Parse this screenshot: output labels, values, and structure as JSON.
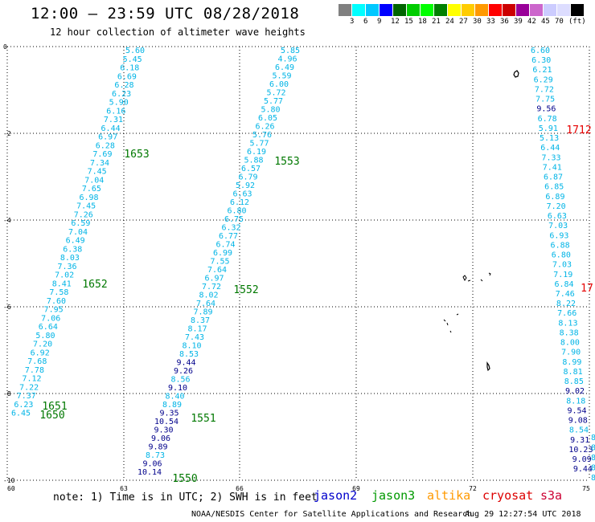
{
  "header": {
    "title": "12:00 – 23:59 UTC 08/28/2018",
    "subtitle": "12 hour collection of altimeter wave heights"
  },
  "legend": {
    "colors": [
      "#808080",
      "#00ffff",
      "#00c8ff",
      "#0000ff",
      "#006400",
      "#00cc00",
      "#00ff00",
      "#008000",
      "#ffff00",
      "#ffcc00",
      "#ff9900",
      "#ff0000",
      "#cc0000",
      "#990099",
      "#cc66cc",
      "#ccccff",
      "#ddddff",
      "#000000"
    ],
    "labels": [
      "3",
      "6",
      "9",
      "12",
      "15",
      "18",
      "21",
      "24",
      "27",
      "30",
      "33",
      "36",
      "39",
      "42",
      "45",
      "70",
      "(ft)"
    ]
  },
  "axes": {
    "x_ticks": [
      "60",
      "63",
      "66",
      "69",
      "72",
      "75"
    ],
    "y_ticks": [
      "0",
      "-2",
      "-4",
      "-6",
      "-8",
      "-10"
    ]
  },
  "colors": {
    "cyan": "#00b4e6",
    "navy": "#00008b",
    "green": "#007800",
    "red": "#e60000"
  },
  "passes": {
    "labels": [
      {
        "text": "1653",
        "color": "green"
      },
      {
        "text": "1652",
        "color": "green"
      },
      {
        "text": "1651",
        "color": "green"
      },
      {
        "text": "1650",
        "color": "green"
      },
      {
        "text": "1553",
        "color": "green"
      },
      {
        "text": "1552",
        "color": "green"
      },
      {
        "text": "1551",
        "color": "green"
      },
      {
        "text": "1550",
        "color": "green"
      },
      {
        "text": "1712",
        "color": "red"
      },
      {
        "text": "17",
        "color": "red"
      }
    ],
    "track1": [
      {
        "v": "5.60",
        "c": "cyan"
      },
      {
        "v": "5.45",
        "c": "cyan"
      },
      {
        "v": "6.18",
        "c": "cyan"
      },
      {
        "v": "6.69",
        "c": "cyan"
      },
      {
        "v": "6.28",
        "c": "cyan"
      },
      {
        "v": "6.23",
        "c": "cyan"
      },
      {
        "v": "5.90",
        "c": "cyan"
      },
      {
        "v": "6.16",
        "c": "cyan"
      },
      {
        "v": "7.31",
        "c": "cyan"
      },
      {
        "v": "6.44",
        "c": "cyan"
      },
      {
        "v": "6.97",
        "c": "cyan"
      },
      {
        "v": "6.28",
        "c": "cyan"
      },
      {
        "v": "7.69",
        "c": "cyan"
      },
      {
        "v": "7.34",
        "c": "cyan"
      },
      {
        "v": "7.45",
        "c": "cyan"
      },
      {
        "v": "7.04",
        "c": "cyan"
      },
      {
        "v": "7.65",
        "c": "cyan"
      },
      {
        "v": "6.98",
        "c": "cyan"
      },
      {
        "v": "7.45",
        "c": "cyan"
      },
      {
        "v": "7.26",
        "c": "cyan"
      },
      {
        "v": "6.59",
        "c": "cyan"
      },
      {
        "v": "7.04",
        "c": "cyan"
      },
      {
        "v": "6.49",
        "c": "cyan"
      },
      {
        "v": "6.38",
        "c": "cyan"
      },
      {
        "v": "8.03",
        "c": "cyan"
      },
      {
        "v": "7.36",
        "c": "cyan"
      },
      {
        "v": "7.02",
        "c": "cyan"
      },
      {
        "v": "8.41",
        "c": "cyan"
      },
      {
        "v": "7.58",
        "c": "cyan"
      },
      {
        "v": "7.60",
        "c": "cyan"
      },
      {
        "v": "7.95",
        "c": "cyan"
      },
      {
        "v": "7.06",
        "c": "cyan"
      },
      {
        "v": "6.64",
        "c": "cyan"
      },
      {
        "v": "5.80",
        "c": "cyan"
      },
      {
        "v": "7.20",
        "c": "cyan"
      },
      {
        "v": "6.92",
        "c": "cyan"
      },
      {
        "v": "7.68",
        "c": "cyan"
      },
      {
        "v": "7.78",
        "c": "cyan"
      },
      {
        "v": "7.12",
        "c": "cyan"
      },
      {
        "v": "7.22",
        "c": "cyan"
      },
      {
        "v": "7.37",
        "c": "cyan"
      },
      {
        "v": "6.23",
        "c": "cyan"
      },
      {
        "v": "6.45",
        "c": "cyan"
      }
    ],
    "track2": [
      {
        "v": "5.85",
        "c": "cyan"
      },
      {
        "v": "4.96",
        "c": "cyan"
      },
      {
        "v": "6.49",
        "c": "cyan"
      },
      {
        "v": "5.59",
        "c": "cyan"
      },
      {
        "v": "6.00",
        "c": "cyan"
      },
      {
        "v": "5.72",
        "c": "cyan"
      },
      {
        "v": "5.77",
        "c": "cyan"
      },
      {
        "v": "5.80",
        "c": "cyan"
      },
      {
        "v": "6.05",
        "c": "cyan"
      },
      {
        "v": "6.26",
        "c": "cyan"
      },
      {
        "v": "5.76",
        "c": "cyan"
      },
      {
        "v": "5.77",
        "c": "cyan"
      },
      {
        "v": "6.19",
        "c": "cyan"
      },
      {
        "v": "5.88",
        "c": "cyan"
      },
      {
        "v": "6.57",
        "c": "cyan"
      },
      {
        "v": "6.79",
        "c": "cyan"
      },
      {
        "v": "5.92",
        "c": "cyan"
      },
      {
        "v": "6.63",
        "c": "cyan"
      },
      {
        "v": "6.12",
        "c": "cyan"
      },
      {
        "v": "6.80",
        "c": "cyan"
      },
      {
        "v": "6.75",
        "c": "cyan"
      },
      {
        "v": "6.32",
        "c": "cyan"
      },
      {
        "v": "6.77",
        "c": "cyan"
      },
      {
        "v": "6.74",
        "c": "cyan"
      },
      {
        "v": "6.99",
        "c": "cyan"
      },
      {
        "v": "7.55",
        "c": "cyan"
      },
      {
        "v": "7.64",
        "c": "cyan"
      },
      {
        "v": "6.97",
        "c": "cyan"
      },
      {
        "v": "7.72",
        "c": "cyan"
      },
      {
        "v": "8.02",
        "c": "cyan"
      },
      {
        "v": "7.64",
        "c": "cyan"
      },
      {
        "v": "7.89",
        "c": "cyan"
      },
      {
        "v": "8.37",
        "c": "cyan"
      },
      {
        "v": "8.17",
        "c": "cyan"
      },
      {
        "v": "7.43",
        "c": "cyan"
      },
      {
        "v": "8.10",
        "c": "cyan"
      },
      {
        "v": "8.53",
        "c": "cyan"
      },
      {
        "v": "9.44",
        "c": "navy"
      },
      {
        "v": "9.26",
        "c": "navy"
      },
      {
        "v": "8.56",
        "c": "cyan"
      },
      {
        "v": "9.10",
        "c": "navy"
      },
      {
        "v": "8.40",
        "c": "cyan"
      },
      {
        "v": "8.89",
        "c": "cyan"
      },
      {
        "v": "9.35",
        "c": "navy"
      },
      {
        "v": "10.54",
        "c": "navy"
      },
      {
        "v": "9.30",
        "c": "navy"
      },
      {
        "v": "9.06",
        "c": "navy"
      },
      {
        "v": "9.89",
        "c": "navy"
      },
      {
        "v": "8.73",
        "c": "cyan"
      },
      {
        "v": "9.06",
        "c": "navy"
      },
      {
        "v": "10.14",
        "c": "navy"
      }
    ],
    "track3": [
      {
        "v": "6.60",
        "c": "cyan"
      },
      {
        "v": "6.30",
        "c": "cyan"
      },
      {
        "v": "6.21",
        "c": "cyan"
      },
      {
        "v": "6.29",
        "c": "cyan"
      },
      {
        "v": "7.72",
        "c": "cyan"
      },
      {
        "v": "7.75",
        "c": "cyan"
      },
      {
        "v": "9.56",
        "c": "navy"
      },
      {
        "v": "6.78",
        "c": "cyan"
      },
      {
        "v": "5.91",
        "c": "cyan"
      },
      {
        "v": "5.13",
        "c": "cyan"
      },
      {
        "v": "6.44",
        "c": "cyan"
      },
      {
        "v": "7.33",
        "c": "cyan"
      },
      {
        "v": "7.41",
        "c": "cyan"
      },
      {
        "v": "6.87",
        "c": "cyan"
      },
      {
        "v": "6.85",
        "c": "cyan"
      },
      {
        "v": "6.89",
        "c": "cyan"
      },
      {
        "v": "7.20",
        "c": "cyan"
      },
      {
        "v": "6.63",
        "c": "cyan"
      },
      {
        "v": "7.03",
        "c": "cyan"
      },
      {
        "v": "6.93",
        "c": "cyan"
      },
      {
        "v": "6.88",
        "c": "cyan"
      },
      {
        "v": "6.80",
        "c": "cyan"
      },
      {
        "v": "7.03",
        "c": "cyan"
      },
      {
        "v": "7.19",
        "c": "cyan"
      },
      {
        "v": "6.84",
        "c": "cyan"
      },
      {
        "v": "7.46",
        "c": "cyan"
      },
      {
        "v": "8.22",
        "c": "cyan"
      },
      {
        "v": "7.66",
        "c": "cyan"
      },
      {
        "v": "8.13",
        "c": "cyan"
      },
      {
        "v": "8.38",
        "c": "cyan"
      },
      {
        "v": "8.00",
        "c": "cyan"
      },
      {
        "v": "7.90",
        "c": "cyan"
      },
      {
        "v": "8.99",
        "c": "cyan"
      },
      {
        "v": "8.81",
        "c": "cyan"
      },
      {
        "v": "8.85",
        "c": "cyan"
      },
      {
        "v": "9.02",
        "c": "navy"
      },
      {
        "v": "8.18",
        "c": "cyan"
      },
      {
        "v": "9.54",
        "c": "navy"
      },
      {
        "v": "9.08",
        "c": "navy"
      },
      {
        "v": "8.54",
        "c": "cyan"
      },
      {
        "v": "9.31",
        "c": "navy"
      },
      {
        "v": "10.23",
        "c": "navy"
      },
      {
        "v": "9.09",
        "c": "navy"
      },
      {
        "v": "9.44",
        "c": "navy"
      }
    ],
    "track4": [
      {
        "v": "8",
        "c": "cyan"
      },
      {
        "v": "8",
        "c": "cyan"
      },
      {
        "v": "8",
        "c": "cyan"
      },
      {
        "v": "8",
        "c": "cyan"
      },
      {
        "v": "8",
        "c": "cyan"
      }
    ]
  },
  "footer": {
    "note": "note: 1) Time is in UTC; 2) SWH is in feet",
    "satellites": [
      {
        "name": "jason2",
        "color": "#0000cc"
      },
      {
        "name": "jason3",
        "color": "#009900"
      },
      {
        "name": "altika",
        "color": "#ff9900"
      },
      {
        "name": "cryosat",
        "color": "#dd0000"
      },
      {
        "name": "s3a",
        "color": "#cc0033"
      }
    ],
    "credit": "NOAA/NESDIS Center for Satellite Applications and Research",
    "timestamp": "Aug 29 12:27:54 UTC 2018"
  }
}
